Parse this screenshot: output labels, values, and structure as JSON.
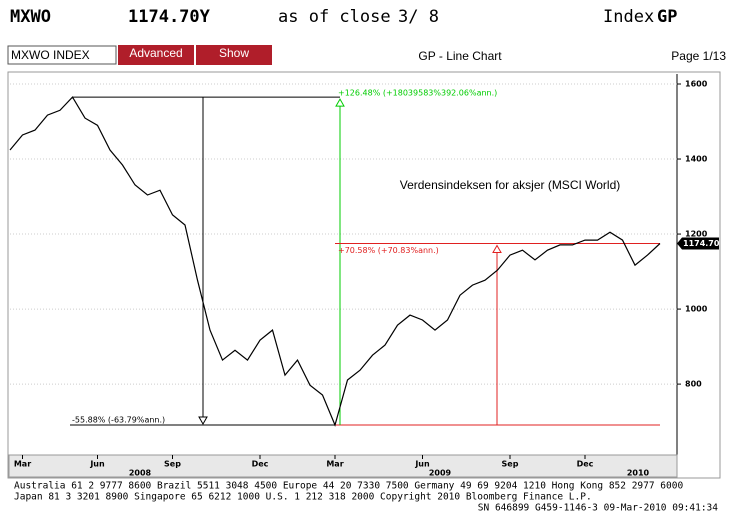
{
  "header": {
    "ticker": "MXWO",
    "price": "1174.70Y",
    "as_of": "as of close",
    "date": "3/ 8",
    "kind": "Index",
    "function": "GP"
  },
  "toolbar": {
    "input": "MXWO INDEX",
    "advanced": "Advanced",
    "show": "Show",
    "screen": "GP - Line Chart",
    "page": "Page 1/13"
  },
  "chart_data": {
    "type": "line",
    "title": "Verdensindeksen for aksjer (MSCI World)",
    "color": "#000000",
    "categories": [
      null,
      "Mar",
      null,
      null,
      null,
      null,
      null,
      "Jun",
      null,
      null,
      null,
      null,
      null,
      "Sep",
      null,
      null,
      null,
      null,
      null,
      null,
      "Dec",
      null,
      null,
      null,
      null,
      null,
      "Mar",
      null,
      null,
      null,
      null,
      null,
      null,
      "Jun",
      null,
      null,
      null,
      null,
      null,
      null,
      "Sep",
      null,
      null,
      null,
      null,
      null,
      "Dec",
      null,
      null,
      null,
      null,
      null,
      null
    ],
    "values": [
      1424,
      1464,
      1477,
      1517,
      1530,
      1565,
      1509,
      1490,
      1424,
      1384,
      1331,
      1304,
      1317,
      1251,
      1224,
      1077,
      944,
      864,
      890,
      864,
      917,
      944,
      824,
      864,
      797,
      771,
      691,
      811,
      837,
      877,
      904,
      957,
      984,
      971,
      944,
      971,
      1037,
      1064,
      1077,
      1104,
      1144,
      1157,
      1131,
      1157,
      1171,
      1171,
      1184,
      1184,
      1205,
      1184,
      1117,
      1144,
      1174.7
    ],
    "last_label": "1174.70",
    "year_labels": [
      "2008",
      "2009",
      "2010"
    ],
    "ylim": [
      611,
      1616
    ],
    "yticks": [
      800,
      1000,
      1200,
      1400,
      1600
    ],
    "annotations": {
      "peak_gain": "+126.48% (+18039583%392.06%ann.)",
      "last_gain": "+70.58% (+70.83%ann.)",
      "loss": "-55.88% (-63.79%ann.)"
    }
  },
  "footer": {
    "lines": [
      "Australia 61 2 9777 8600 Brazil 5511 3048 4500 Europe 44 20 7330 7500 Germany 49 69 9204 1210 Hong Kong 852 2977 6000",
      "Japan 81 3 3201 8900        Singapore 65 6212 1000        U.S. 1 212 318 2000        Copyright 2010 Bloomberg Finance L.P.",
      "SN 646899 G459-1146-3 09-Mar-2010 09:41:34"
    ]
  }
}
